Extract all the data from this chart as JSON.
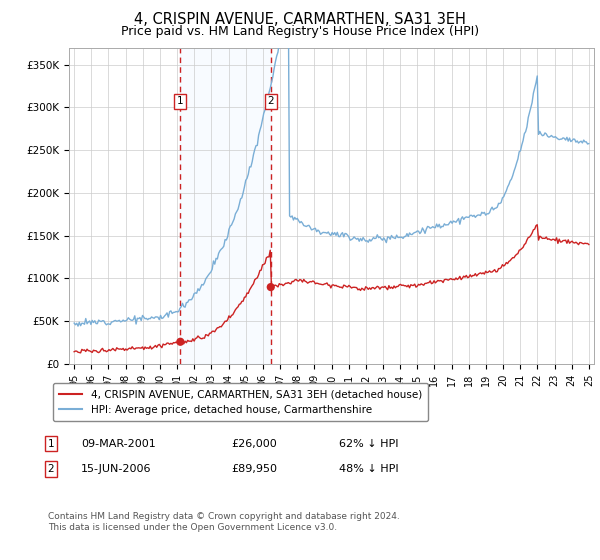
{
  "title": "4, CRISPIN AVENUE, CARMARTHEN, SA31 3EH",
  "subtitle": "Price paid vs. HM Land Registry's House Price Index (HPI)",
  "ylim": [
    0,
    370000
  ],
  "yticks": [
    0,
    50000,
    100000,
    150000,
    200000,
    250000,
    300000,
    350000
  ],
  "ytick_labels": [
    "£0",
    "£50K",
    "£100K",
    "£150K",
    "£200K",
    "£250K",
    "£300K",
    "£350K"
  ],
  "sale1_date": 2001.19,
  "sale1_price": 26000,
  "sale1_label": "1",
  "sale2_date": 2006.46,
  "sale2_price": 89950,
  "sale2_label": "2",
  "hpi_color": "#7aaed6",
  "property_color": "#cc2222",
  "shade_color": "#ddeeff",
  "vline_color": "#cc2222",
  "background_color": "#ffffff",
  "legend_entry1": "4, CRISPIN AVENUE, CARMARTHEN, SA31 3EH (detached house)",
  "legend_entry2": "HPI: Average price, detached house, Carmarthenshire",
  "footer": "Contains HM Land Registry data © Crown copyright and database right 2024.\nThis data is licensed under the Open Government Licence v3.0.",
  "title_fontsize": 10.5,
  "subtitle_fontsize": 9
}
